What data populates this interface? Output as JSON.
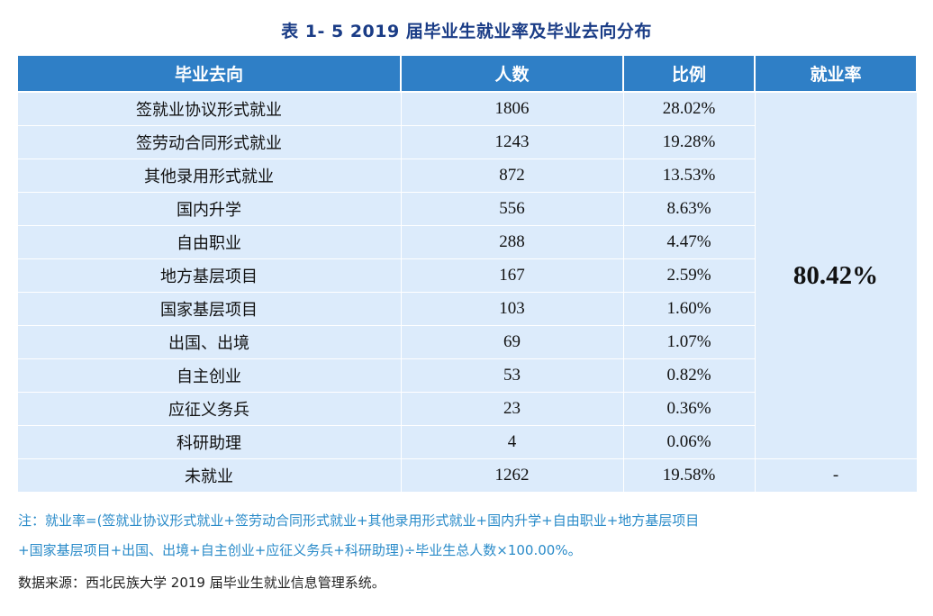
{
  "caption": "表 1- 5    2019 届毕业生就业率及毕业去向分布",
  "headers": {
    "direction": "毕业去向",
    "count": "人数",
    "ratio": "比例",
    "rate": "就业率"
  },
  "rows": [
    {
      "direction": "签就业协议形式就业",
      "count": "1806",
      "ratio": "28.02%"
    },
    {
      "direction": "签劳动合同形式就业",
      "count": "1243",
      "ratio": "19.28%"
    },
    {
      "direction": "其他录用形式就业",
      "count": "872",
      "ratio": "13.53%"
    },
    {
      "direction": "国内升学",
      "count": "556",
      "ratio": "8.63%"
    },
    {
      "direction": "自由职业",
      "count": "288",
      "ratio": "4.47%"
    },
    {
      "direction": "地方基层项目",
      "count": "167",
      "ratio": "2.59%"
    },
    {
      "direction": "国家基层项目",
      "count": "103",
      "ratio": "1.60%"
    },
    {
      "direction": "出国、出境",
      "count": "69",
      "ratio": "1.07%"
    },
    {
      "direction": "自主创业",
      "count": "53",
      "ratio": "0.82%"
    },
    {
      "direction": "应征义务兵",
      "count": "23",
      "ratio": "0.36%"
    },
    {
      "direction": "科研助理",
      "count": "4",
      "ratio": "0.06%"
    }
  ],
  "employment_rate": "80.42%",
  "unemployed": {
    "direction": "未就业",
    "count": "1262",
    "ratio": "19.58%",
    "rate": "-"
  },
  "note_line1": "注：就业率=(签就业协议形式就业+签劳动合同形式就业+其他录用形式就业+国内升学+自由职业+地方基层项目",
  "note_line2": "+国家基层项目+出国、出境+自主创业+应征义务兵+科研助理)÷毕业生总人数×100.00%。",
  "source": "数据来源：西北民族大学 2019 届毕业生就业信息管理系统。",
  "colors": {
    "header_bg": "#2f7fc6",
    "cell_bg": "#dcebfb",
    "rate_text": "#2da7dc",
    "note_text": "#2a8bc9",
    "caption_text": "#1a3c86"
  }
}
